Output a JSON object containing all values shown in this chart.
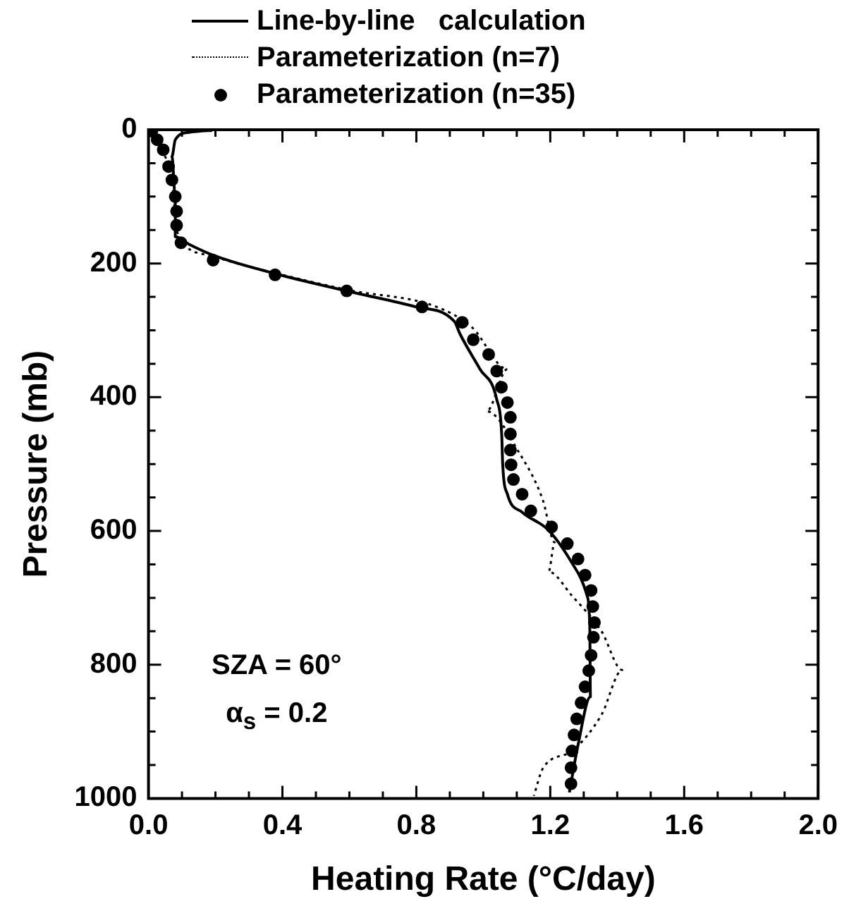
{
  "chart_data": {
    "type": "line",
    "xlabel": "Heating Rate (°C/day)",
    "ylabel": "Pressure (mb)",
    "xlim": [
      0,
      2
    ],
    "ylim": [
      1000,
      0
    ],
    "xticks": [
      {
        "value": 0,
        "label": "0.0"
      },
      {
        "value": 0.1,
        "label": null
      },
      {
        "value": 0.2,
        "label": null
      },
      {
        "value": 0.3,
        "label": null
      },
      {
        "value": 0.4,
        "label": "0.4"
      },
      {
        "value": 0.5,
        "label": null
      },
      {
        "value": 0.6,
        "label": null
      },
      {
        "value": 0.7,
        "label": null
      },
      {
        "value": 0.8,
        "label": "0.8"
      },
      {
        "value": 0.9,
        "label": null
      },
      {
        "value": 1,
        "label": null
      },
      {
        "value": 1.1,
        "label": null
      },
      {
        "value": 1.2,
        "label": "1.2"
      },
      {
        "value": 1.3,
        "label": null
      },
      {
        "value": 1.4,
        "label": null
      },
      {
        "value": 1.5,
        "label": null
      },
      {
        "value": 1.6,
        "label": "1.6"
      },
      {
        "value": 1.7,
        "label": null
      },
      {
        "value": 1.8,
        "label": null
      },
      {
        "value": 1.9,
        "label": null
      },
      {
        "value": 2,
        "label": "2.0"
      }
    ],
    "yticks": [
      0,
      {
        "value": 50,
        "label": null
      },
      {
        "value": 100,
        "label": null
      },
      {
        "value": 150,
        "label": null
      },
      200,
      {
        "value": 250,
        "label": null
      },
      {
        "value": 300,
        "label": null
      },
      {
        "value": 350,
        "label": null
      },
      400,
      {
        "value": 450,
        "label": null
      },
      {
        "value": 500,
        "label": null
      },
      {
        "value": 550,
        "label": null
      },
      600,
      {
        "value": 650,
        "label": null
      },
      {
        "value": 700,
        "label": null
      },
      {
        "value": 750,
        "label": null
      },
      800,
      {
        "value": 850,
        "label": null
      },
      {
        "value": 900,
        "label": null
      },
      {
        "value": 950,
        "label": null
      },
      1000
    ],
    "legend": "top",
    "annotations": [
      "SZA = 60°",
      "α$_{s}$ = 0.2"
    ],
    "series": [
      {
        "name": "Line-by-line   calculation",
        "color": "#000000",
        "marker": "none",
        "line_style": "solid",
        "x": [
          0.19,
          0.12,
          0.08,
          0.07,
          0.08,
          0.08,
          0.12,
          0.2,
          0.4,
          0.6,
          0.8,
          0.914,
          0.93,
          0.99,
          1.04,
          1.055,
          1.058,
          1.072,
          1.116,
          1.195,
          1.265,
          1.31,
          1.318,
          1.32,
          1.283,
          1.257
        ],
        "values": [
          1,
          4,
          15,
          40,
          100,
          160,
          171,
          189,
          218,
          242,
          265,
          287,
          305,
          358,
          403,
          456,
          501,
          545,
          572,
          599,
          648,
          697,
          742,
          848,
          920,
          991
        ]
      },
      {
        "name": "Parameterization (n=7)",
        "color": "#000000",
        "marker": "none",
        "line_style": "dotted",
        "x": [
          0.01,
          0.04,
          0.07,
          0.08,
          0.08,
          0.1,
          0.2,
          0.4,
          0.6,
          0.861,
          0.967,
          1.072,
          1.01,
          1.107,
          1.178,
          1.213,
          1.195,
          1.265,
          1.353,
          1.415,
          1.353,
          1.265,
          1.178,
          1.151
        ],
        "values": [
          2,
          30,
          75,
          120,
          150,
          169,
          190,
          217,
          240,
          265,
          296,
          358,
          421,
          483,
          554,
          617,
          661,
          697,
          750,
          808,
          875,
          929,
          955,
          996
        ]
      },
      {
        "name": "Parameterization (n=35)",
        "type": "scatter",
        "color": "#000000",
        "marker": "circle",
        "x": [
          0.01,
          0.026,
          0.044,
          0.06,
          0.07,
          0.08,
          0.084,
          0.084,
          0.097,
          0.193,
          0.378,
          0.592,
          0.817,
          0.937,
          0.97,
          1.016,
          1.04,
          1.054,
          1.072,
          1.081,
          1.081,
          1.081,
          1.083,
          1.09,
          1.116,
          1.142,
          1.204,
          1.251,
          1.283,
          1.304,
          1.322,
          1.327,
          1.332,
          1.329,
          1.322,
          1.315,
          1.304,
          1.292,
          1.279,
          1.271,
          1.265,
          1.262,
          1.262
        ],
        "values": [
          2,
          15,
          30,
          55,
          75,
          100,
          122,
          143,
          169,
          195,
          217,
          241,
          265,
          288,
          314,
          336,
          361,
          385,
          408,
          430,
          455,
          479,
          501,
          523,
          545,
          570,
          594,
          619,
          642,
          666,
          689,
          713,
          737,
          759,
          786,
          809,
          833,
          857,
          881,
          905,
          929,
          954,
          978
        ]
      }
    ]
  }
}
